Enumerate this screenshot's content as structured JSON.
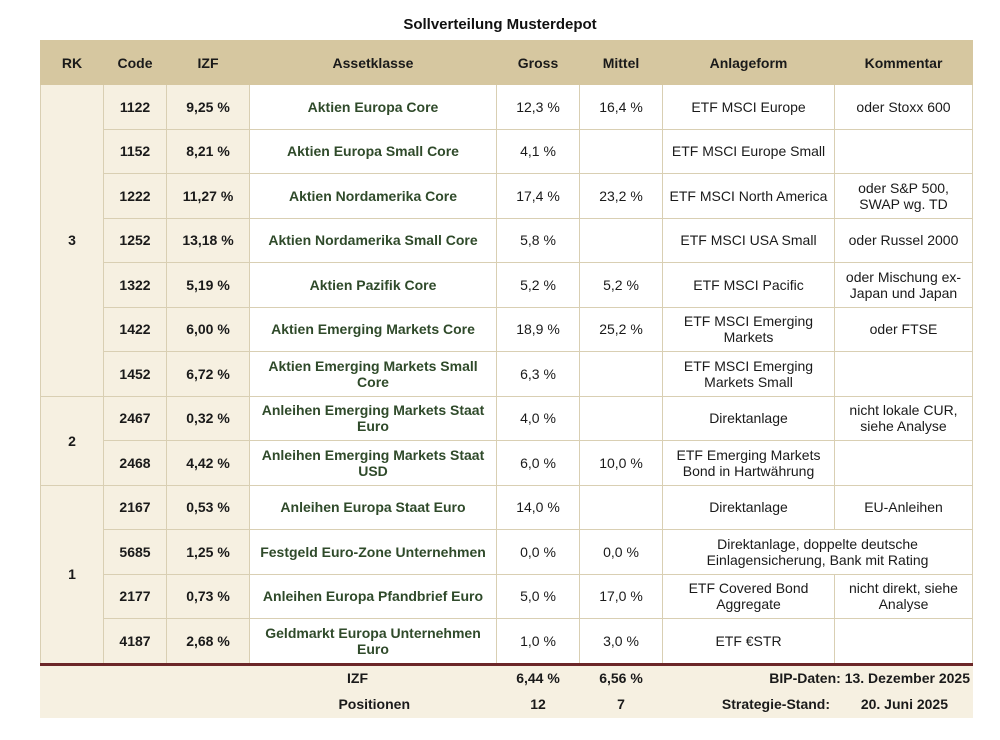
{
  "title": "Sollverteilung Musterdepot",
  "columns": [
    "RK",
    "Code",
    "IZF",
    "Assetklasse",
    "Gross",
    "Mittel",
    "Anlageform",
    "Kommentar"
  ],
  "groups": [
    {
      "rk": "3",
      "rows": [
        {
          "code": "1122",
          "izf": "9,25 %",
          "asset": "Aktien Europa Core",
          "gross": "12,3 %",
          "mittel": "16,4 %",
          "form": "ETF MSCI Europe",
          "comment": "oder Stoxx 600"
        },
        {
          "code": "1152",
          "izf": "8,21 %",
          "asset": "Aktien Europa Small Core",
          "gross": "4,1 %",
          "mittel": "",
          "form": "ETF MSCI Europe Small",
          "comment": ""
        },
        {
          "code": "1222",
          "izf": "11,27 %",
          "asset": "Aktien Nordamerika Core",
          "gross": "17,4 %",
          "mittel": "23,2 %",
          "form": "ETF MSCI North America",
          "comment": "oder S&P 500, SWAP wg. TD"
        },
        {
          "code": "1252",
          "izf": "13,18 %",
          "asset": "Aktien Nordamerika Small Core",
          "gross": "5,8 %",
          "mittel": "",
          "form": "ETF MSCI USA Small",
          "comment": "oder Russel 2000"
        },
        {
          "code": "1322",
          "izf": "5,19 %",
          "asset": "Aktien Pazifik Core",
          "gross": "5,2 %",
          "mittel": "5,2 %",
          "form": "ETF MSCI Pacific",
          "comment": "oder Mischung ex-Japan und Japan"
        },
        {
          "code": "1422",
          "izf": "6,00 %",
          "asset": "Aktien Emerging Markets Core",
          "gross": "18,9 %",
          "mittel": "25,2 %",
          "form": "ETF MSCI Emerging Markets",
          "comment": "oder FTSE"
        },
        {
          "code": "1452",
          "izf": "6,72 %",
          "asset": "Aktien Emerging Markets Small Core",
          "gross": "6,3 %",
          "mittel": "",
          "form": "ETF MSCI Emerging Markets Small",
          "comment": ""
        }
      ]
    },
    {
      "rk": "2",
      "rows": [
        {
          "code": "2467",
          "izf": "0,32 %",
          "asset": "Anleihen Emerging Markets Staat Euro",
          "gross": "4,0 %",
          "mittel": "",
          "form": "Direktanlage",
          "comment": "nicht lokale CUR, siehe Analyse"
        },
        {
          "code": "2468",
          "izf": "4,42 %",
          "asset": "Anleihen Emerging Markets Staat USD",
          "gross": "6,0 %",
          "mittel": "10,0 %",
          "form": "ETF Emerging Markets Bond in Hartwährung",
          "comment": ""
        }
      ]
    },
    {
      "rk": "1",
      "rows": [
        {
          "code": "2167",
          "izf": "0,53 %",
          "asset": "Anleihen Europa Staat Euro",
          "gross": "14,0 %",
          "mittel": "",
          "form": "Direktanlage",
          "comment": "EU-Anleihen"
        },
        {
          "code": "5685",
          "izf": "1,25 %",
          "asset": "Festgeld Euro-Zone Unternehmen",
          "gross": "0,0 %",
          "mittel": "0,0 %",
          "form": "Direktanlage, doppelte deutsche Einlagensicherung, Bank mit Rating",
          "comment": "",
          "merged": true
        },
        {
          "code": "2177",
          "izf": "0,73 %",
          "asset": "Anleihen Europa Pfandbrief Euro",
          "gross": "5,0 %",
          "mittel": "17,0 %",
          "form": "ETF Covered Bond Aggregate",
          "comment": "nicht direkt, siehe Analyse"
        },
        {
          "code": "4187",
          "izf": "2,68 %",
          "asset": "Geldmarkt Europa Unternehmen Euro",
          "gross": "1,0 %",
          "mittel": "3,0 %",
          "form": "ETF €STR",
          "comment": ""
        }
      ]
    }
  ],
  "footer": {
    "izf_label": "IZF",
    "izf_gross": "6,44 %",
    "izf_mittel": "6,56 %",
    "bip_label": "BIP-Daten:",
    "bip_value": "13. Dezember 2025",
    "pos_label": "Positionen",
    "pos_gross": "12",
    "pos_mittel": "7",
    "strategy_label": "Strategie-Stand:",
    "strategy_value": "20. Juni 2025"
  }
}
